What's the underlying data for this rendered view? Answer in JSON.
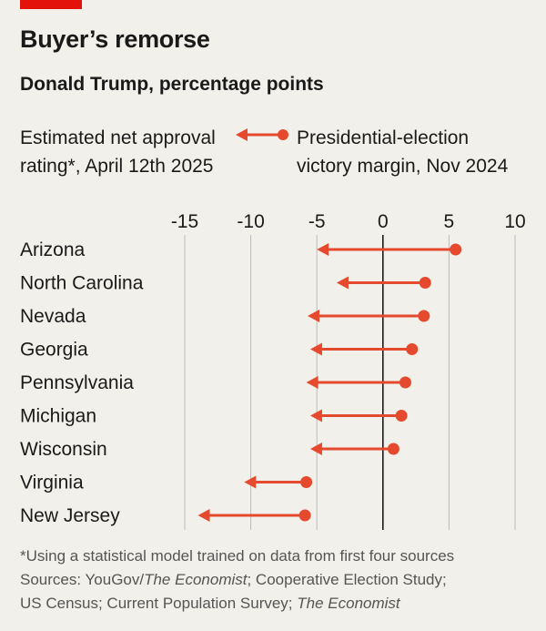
{
  "header": {
    "title": "Buyer’s remorse",
    "subtitle": "Donald Trump, percentage points"
  },
  "legend": {
    "left_line1": "Estimated net approval",
    "left_line2": "rating*, April 12th 2025",
    "right_line1": "Presidential-election",
    "right_line2": "victory margin, Nov 2024"
  },
  "colors": {
    "accent": "#e3120b",
    "series": "#e64a2e",
    "zero_line": "#1a1a1a",
    "grid": "#bcbcbc"
  },
  "chart_data": {
    "type": "dumbbell",
    "xlim": [
      -15,
      10
    ],
    "ticks": [
      -15,
      -10,
      -5,
      0,
      5,
      10
    ],
    "grid": true,
    "legend_placement": "top",
    "categories": [
      "Arizona",
      "North Carolina",
      "Nevada",
      "Georgia",
      "Pennsylvania",
      "Michigan",
      "Wisconsin",
      "Virginia",
      "New Jersey"
    ],
    "series": [
      {
        "name": "Presidential-election victory margin, Nov 2024",
        "values": [
          5.5,
          3.2,
          3.1,
          2.2,
          1.7,
          1.4,
          0.8,
          -5.8,
          -5.9
        ]
      },
      {
        "name": "Estimated net approval rating*, April 12th 2025",
        "values": [
          -5.0,
          -3.5,
          -5.7,
          -5.5,
          -5.8,
          -5.5,
          -5.5,
          -10.5,
          -14.0
        ]
      }
    ]
  },
  "footnote": {
    "line1": "*Using a statistical model trained on data from first four sources",
    "line2": "Sources: YouGov/The Economist; Cooperative Election Study;",
    "line3": "US Census; Current Population Survey; The Economist"
  }
}
